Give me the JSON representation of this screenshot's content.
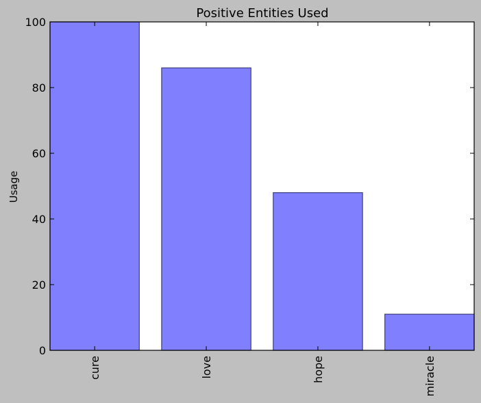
{
  "chart_data": {
    "type": "bar",
    "title": "Positive Entities Used",
    "xlabel": "",
    "ylabel": "Usage",
    "categories": [
      "cure",
      "love",
      "hope",
      "miracle"
    ],
    "values": [
      100,
      86,
      48,
      11
    ],
    "ylim": [
      0,
      100
    ],
    "yticks": [
      0,
      20,
      40,
      60,
      80,
      100
    ],
    "grid": false,
    "legend": "none",
    "bar_color": "#8080ff",
    "bar_edge_color": "#3d3d7a",
    "background_color": "#bfbfbf",
    "plot_background_color": "#ffffff"
  }
}
